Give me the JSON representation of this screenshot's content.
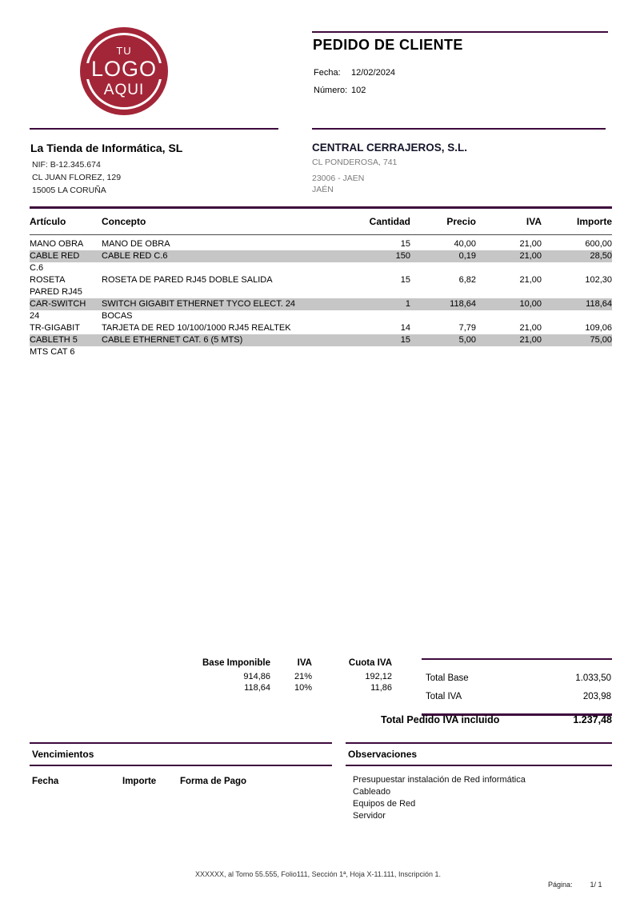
{
  "logo": {
    "line1": "TU",
    "line2": "LOGO",
    "line3": "AQUI",
    "color": "#a32638"
  },
  "header": {
    "title": "PEDIDO DE CLIENTE",
    "fecha_label": "Fecha:",
    "fecha_value": "12/02/2024",
    "numero_label": "Número:",
    "numero_value": "102"
  },
  "seller": {
    "name": "La Tienda de Informática, SL",
    "nif": "NIF: B-12.345.674",
    "address": "CL JUAN FLOREZ, 129",
    "city": "15005 LA CORUÑA"
  },
  "customer": {
    "name": "CENTRAL CERRAJEROS, S.L.",
    "address": "CL PONDEROSA, 741",
    "postal_city": "23006 - JAEN",
    "province": "JAÉN"
  },
  "items": {
    "headers": [
      "Artículo",
      "Concepto",
      "Cantidad",
      "Precio",
      "IVA",
      "Importe"
    ],
    "rows": [
      {
        "articulo_lines": [
          "MANO OBRA"
        ],
        "concepto_lines": [
          "MANO DE OBRA"
        ],
        "cantidad": "15",
        "precio": "40,00",
        "iva": "21,00",
        "importe": "600,00",
        "highlight": false
      },
      {
        "articulo_lines": [
          "CABLE RED",
          "C.6"
        ],
        "concepto_lines": [
          "CABLE RED C.6"
        ],
        "cantidad": "150",
        "precio": "0,19",
        "iva": "21,00",
        "importe": "28,50",
        "highlight": true
      },
      {
        "articulo_lines": [
          "ROSETA",
          "PARED RJ45"
        ],
        "concepto_lines": [
          "ROSETA DE PARED RJ45 DOBLE SALIDA"
        ],
        "cantidad": "15",
        "precio": "6,82",
        "iva": "21,00",
        "importe": "102,30",
        "highlight": false
      },
      {
        "articulo_lines": [
          "CAR-SWITCH",
          "24"
        ],
        "concepto_lines": [
          "SWITCH GIGABIT ETHERNET TYCO ELECT. 24",
          "BOCAS"
        ],
        "cantidad": "1",
        "precio": "118,64",
        "iva": "10,00",
        "importe": "118,64",
        "highlight": true
      },
      {
        "articulo_lines": [
          "TR-GIGABIT"
        ],
        "concepto_lines": [
          "TARJETA DE RED 10/100/1000 RJ45 REALTEK"
        ],
        "cantidad": "14",
        "precio": "7,79",
        "iva": "21,00",
        "importe": "109,06",
        "highlight": false
      },
      {
        "articulo_lines": [
          "CABLETH 5",
          "MTS CAT 6"
        ],
        "concepto_lines": [
          "CABLE ETHERNET CAT. 6 (5 MTS)"
        ],
        "cantidad": "15",
        "precio": "5,00",
        "iva": "21,00",
        "importe": "75,00",
        "highlight": true
      }
    ]
  },
  "tax_summary": {
    "headers": [
      "Base Imponible",
      "IVA",
      "Cuota IVA"
    ],
    "rows": [
      {
        "base": "914,86",
        "iva": "21%",
        "cuota": "192,12"
      },
      {
        "base": "118,64",
        "iva": "10%",
        "cuota": "11,86"
      }
    ]
  },
  "totals": {
    "total_base_label": "Total Base",
    "total_base_value": "1.033,50",
    "total_iva_label": "Total IVA",
    "total_iva_value": "203,98",
    "grand_label": "Total Pedido IVA incluido",
    "grand_value": "1.237,48"
  },
  "vencimientos": {
    "title": "Vencimientos",
    "headers": [
      "Fecha",
      "Importe",
      "Forma de Pago"
    ]
  },
  "observaciones": {
    "title": "Observaciones",
    "lines": [
      "Presupuestar instalación de Red informática",
      "Cableado",
      "Equipos de Red",
      "Servidor"
    ]
  },
  "footer": {
    "registry": "XXXXXX, al Tomo 55.555, Folio111, Sección 1ª, Hoja X-11.111, Inscripción 1.",
    "page_label": "Página:",
    "page_value": "1/ 1"
  },
  "colors": {
    "accent_purple": "#3d0a3d",
    "logo_red": "#a32638",
    "row_highlight": "#c6c6c6",
    "muted_text": "#7b7b7b"
  }
}
